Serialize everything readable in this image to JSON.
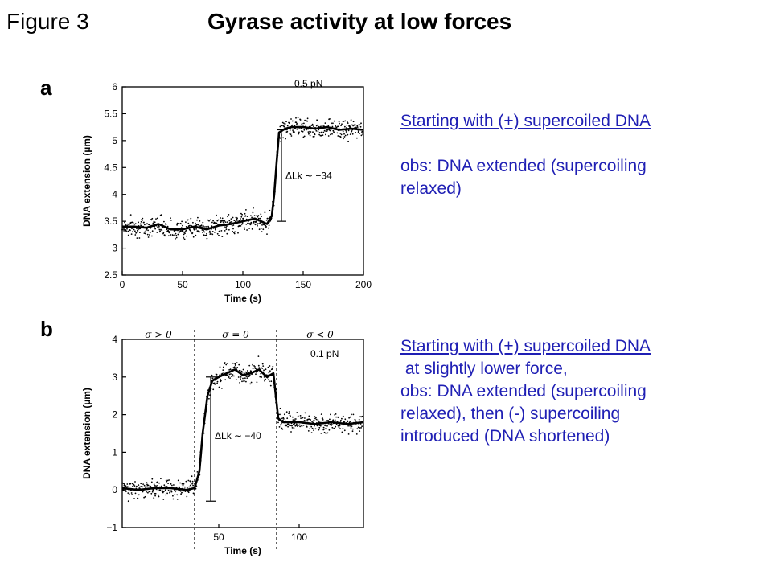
{
  "header": {
    "figure_label": "Figure 3",
    "title": "Gyrase activity at low forces"
  },
  "panels": [
    {
      "letter": "a",
      "caption_underlined": "Starting with (+) supercoiled DNA",
      "caption_lines": [
        "",
        "obs: DNA extended (supercoiling",
        "relaxed)"
      ]
    },
    {
      "letter": "b",
      "caption_underlined": "Starting with (+) supercoiled DNA",
      "caption_lines": [
        " at slightly lower force,",
        "obs: DNA extended (supercoiling",
        "relaxed), then (-) supercoiling",
        "introduced (DNA shortened)"
      ]
    }
  ],
  "colors": {
    "caption": "#1f1fb4",
    "trace": "#000000",
    "axis": "#000000"
  },
  "chart_data": [
    {
      "type": "scatter",
      "title": "",
      "xlabel": "Time (s)",
      "ylabel": "DNA extension (µm)",
      "xlim": [
        0,
        200
      ],
      "ylim": [
        2.5,
        6
      ],
      "xticks": [
        0,
        50,
        100,
        150,
        200
      ],
      "yticks": [
        2.5,
        3,
        3.5,
        4,
        4.5,
        5,
        5.5,
        6
      ],
      "annotations": {
        "force": "0.5 pN",
        "delta_lk": "ΔLk ∼ −34"
      },
      "delta_lk_bar": {
        "x": 132,
        "y_from": 3.5,
        "y_to": 5.2
      },
      "series": [
        {
          "x": [
            0,
            10,
            20,
            30,
            40,
            50,
            60,
            70,
            80,
            90,
            100,
            110,
            115,
            120,
            124,
            126,
            128,
            130,
            135,
            140,
            150,
            160,
            170,
            180,
            190,
            200
          ],
          "y": [
            3.4,
            3.4,
            3.38,
            3.45,
            3.35,
            3.35,
            3.4,
            3.35,
            3.42,
            3.45,
            3.5,
            3.55,
            3.5,
            3.45,
            3.6,
            4.0,
            4.6,
            5.15,
            5.22,
            5.25,
            5.25,
            5.22,
            5.25,
            5.2,
            5.22,
            5.2
          ]
        }
      ]
    },
    {
      "type": "scatter",
      "title": "",
      "xlabel": "Time (s)",
      "ylabel": "DNA extension (µm)",
      "xlim": [
        -10,
        140
      ],
      "ylim": [
        -1,
        4
      ],
      "xticks": [
        50,
        100
      ],
      "yticks": [
        -1,
        0,
        1,
        2,
        3,
        4
      ],
      "regions": [
        "σ > 0",
        "σ = 0",
        "σ < 0"
      ],
      "region_boundaries": [
        35,
        86
      ],
      "annotations": {
        "force": "0.1 pN",
        "delta_lk": "ΔLk ∼ −40"
      },
      "delta_lk_bar": {
        "x": 45,
        "y_from": -0.3,
        "y_to": 3.0
      },
      "series": [
        {
          "x": [
            -10,
            0,
            10,
            20,
            30,
            35,
            38,
            40,
            43,
            46,
            50,
            55,
            60,
            65,
            70,
            75,
            80,
            84,
            87,
            90,
            100,
            110,
            120,
            130,
            140
          ],
          "y": [
            0.05,
            0.0,
            0.05,
            0.05,
            0.0,
            0.05,
            0.5,
            1.5,
            2.5,
            2.9,
            3.0,
            3.1,
            3.2,
            3.05,
            3.1,
            3.2,
            3.0,
            3.1,
            1.9,
            1.8,
            1.8,
            1.75,
            1.8,
            1.75,
            1.8
          ]
        }
      ]
    }
  ]
}
